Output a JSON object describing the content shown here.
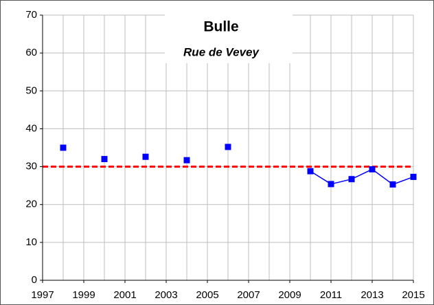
{
  "chart_data": {
    "type": "line",
    "title": "Bulle",
    "subtitle": "Rue de Vevey",
    "x": [
      1998,
      1999,
      2000,
      2001,
      2002,
      2003,
      2004,
      2005,
      2006,
      2007,
      2008,
      2009,
      2010,
      2011,
      2012,
      2013,
      2014,
      2015
    ],
    "series": [
      {
        "color": "#0000ff",
        "values": [
          35,
          null,
          32,
          null,
          32.6,
          null,
          31.7,
          null,
          35.2,
          null,
          null,
          null,
          28.8,
          25.4,
          26.7,
          29.3,
          25.3,
          27.3
        ]
      }
    ],
    "threshold": {
      "value": 30,
      "color": "#ff0000",
      "style": "dashed"
    },
    "xlim": [
      1997,
      2015
    ],
    "xticks": [
      1997,
      1999,
      2001,
      2003,
      2005,
      2007,
      2009,
      2011,
      2013,
      2015
    ],
    "ylim": [
      0,
      70
    ],
    "yticks": [
      0,
      10,
      20,
      30,
      40,
      50,
      60,
      70
    ],
    "grid": true
  }
}
